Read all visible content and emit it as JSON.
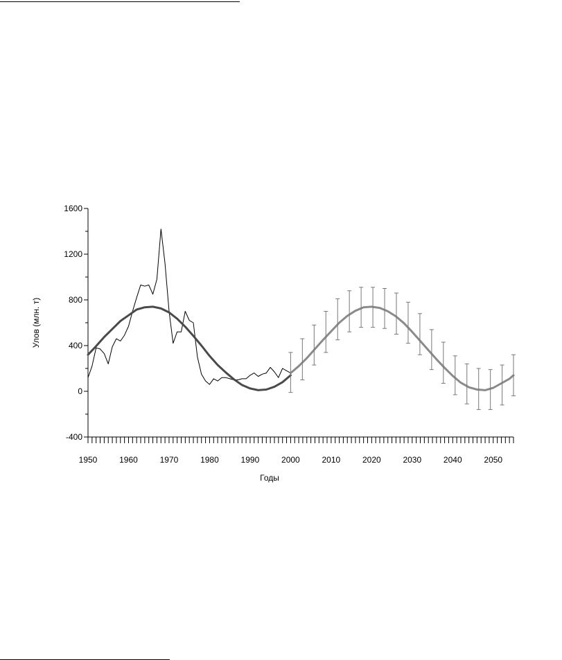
{
  "chart_data": {
    "type": "line",
    "xlabel": "Годы",
    "ylabel": "Улов (млн. т)",
    "xlim": [
      1950,
      2055
    ],
    "ylim": [
      -400,
      1600
    ],
    "yticks": [
      -400,
      0,
      400,
      800,
      1200,
      1600
    ],
    "xticks": [
      1950,
      1960,
      1970,
      1980,
      1990,
      2000,
      2010,
      2020,
      2030,
      2040,
      2050
    ],
    "grid": false,
    "series": [
      {
        "style": "observed",
        "color": "#000000",
        "x": [
          1950,
          1951,
          1952,
          1953,
          1954,
          1955,
          1956,
          1957,
          1958,
          1959,
          1960,
          1961,
          1962,
          1963,
          1964,
          1965,
          1966,
          1967,
          1968,
          1969,
          1970,
          1971,
          1972,
          1973,
          1974,
          1975,
          1976,
          1977,
          1978,
          1979,
          1980,
          1981,
          1982,
          1983,
          1984,
          1985,
          1986,
          1987,
          1988,
          1989,
          1990,
          1991,
          1992,
          1993,
          1994,
          1995,
          1996,
          1997,
          1998,
          1999,
          2000
        ],
        "y": [
          120,
          220,
          380,
          370,
          330,
          240,
          390,
          460,
          440,
          490,
          570,
          700,
          820,
          930,
          920,
          930,
          850,
          980,
          1420,
          1120,
          700,
          420,
          520,
          520,
          700,
          620,
          600,
          300,
          150,
          90,
          60,
          110,
          90,
          120,
          120,
          110,
          100,
          100,
          110,
          110,
          140,
          160,
          130,
          150,
          160,
          210,
          170,
          120,
          200,
          180,
          160
        ]
      },
      {
        "style": "model-fit",
        "color": "#4a4a4a",
        "x": [
          1950,
          1952,
          1954,
          1956,
          1958,
          1960,
          1962,
          1964,
          1966,
          1968,
          1970,
          1972,
          1974,
          1976,
          1978,
          1980,
          1982,
          1984,
          1986,
          1988,
          1990,
          1992,
          1994,
          1996,
          1998,
          2000
        ],
        "y": [
          320,
          395,
          475,
          545,
          615,
          665,
          715,
          735,
          740,
          725,
          690,
          635,
          565,
          485,
          400,
          310,
          230,
          165,
          105,
          55,
          25,
          10,
          15,
          40,
          80,
          140
        ]
      },
      {
        "style": "forecast",
        "color": "#8a8a8a",
        "x": [
          2000,
          2002,
          2004,
          2006,
          2008,
          2010,
          2012,
          2014,
          2016,
          2018,
          2020,
          2022,
          2024,
          2026,
          2028,
          2030,
          2032,
          2034,
          2036,
          2038,
          2040,
          2042,
          2044,
          2046,
          2048,
          2050,
          2052,
          2054,
          2055
        ],
        "y": [
          160,
          220,
          290,
          370,
          450,
          525,
          600,
          660,
          705,
          735,
          740,
          730,
          700,
          655,
          595,
          520,
          440,
          360,
          280,
          205,
          135,
          75,
          35,
          15,
          10,
          30,
          70,
          110,
          140
        ]
      }
    ],
    "error_bars": {
      "color": "#777777",
      "x": [
        2000,
        2002.9,
        2005.8,
        2008.7,
        2011.6,
        2014.5,
        2017.4,
        2020.3,
        2023.2,
        2026.1,
        2029,
        2031.9,
        2034.8,
        2037.7,
        2040.6,
        2043.5,
        2046.4,
        2049.3,
        2052.2,
        2055
      ],
      "low": [
        -10,
        100,
        230,
        340,
        450,
        520,
        560,
        560,
        550,
        500,
        420,
        320,
        190,
        70,
        -30,
        -110,
        -160,
        -160,
        -120,
        -40
      ],
      "high": [
        340,
        460,
        580,
        700,
        810,
        880,
        910,
        910,
        900,
        860,
        780,
        680,
        540,
        430,
        310,
        240,
        200,
        190,
        230,
        320
      ]
    }
  }
}
